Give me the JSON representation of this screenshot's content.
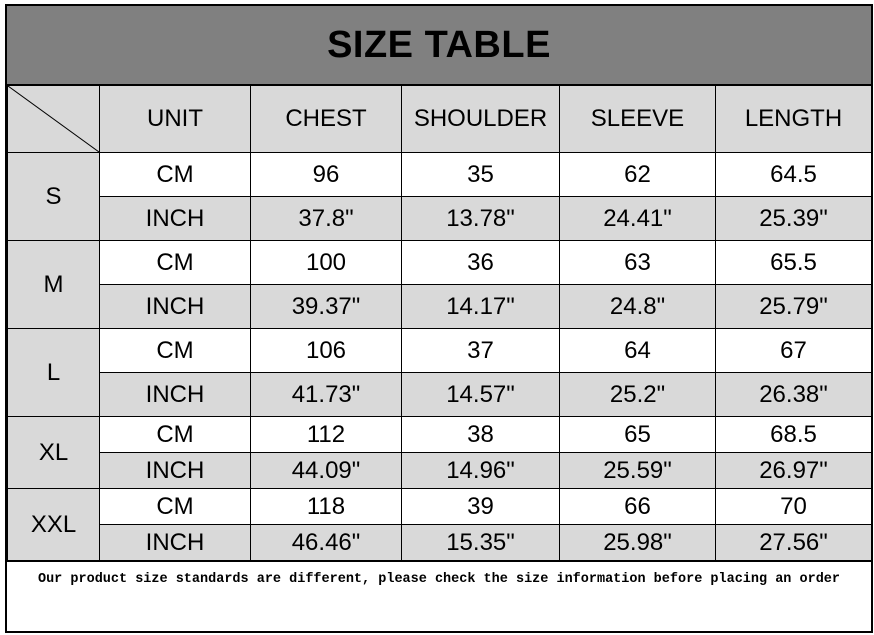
{
  "title": "SIZE TABLE",
  "headers": [
    "UNIT",
    "CHEST",
    "SHOULDER",
    "SLEEVE",
    "LENGTH"
  ],
  "sizes": [
    {
      "size": "S",
      "cm": [
        "CM",
        "96",
        "35",
        "62",
        "64.5"
      ],
      "inch": [
        "INCH",
        "37.8\"",
        "13.78\"",
        "24.41\"",
        "25.39\""
      ]
    },
    {
      "size": "M",
      "cm": [
        "CM",
        "100",
        "36",
        "63",
        "65.5"
      ],
      "inch": [
        "INCH",
        "39.37\"",
        "14.17\"",
        "24.8\"",
        "25.79\""
      ]
    },
    {
      "size": "L",
      "cm": [
        "CM",
        "106",
        "37",
        "64",
        "67"
      ],
      "inch": [
        "INCH",
        "41.73\"",
        "14.57\"",
        "25.2\"",
        "26.38\""
      ]
    },
    {
      "size": "XL",
      "cm": [
        "CM",
        "112",
        "38",
        "65",
        "68.5"
      ],
      "inch": [
        "INCH",
        "44.09\"",
        "14.96\"",
        "25.59\"",
        "26.97\""
      ]
    },
    {
      "size": "XXL",
      "cm": [
        "CM",
        "118",
        "39",
        "66",
        "70"
      ],
      "inch": [
        "INCH",
        "46.46\"",
        "15.35\"",
        "25.98\"",
        "27.56\""
      ]
    }
  ],
  "footer": "Our product size standards are different, please check the size information before placing an order",
  "colors": {
    "title_bg": "#808080",
    "shaded": "#d9d9d9"
  }
}
